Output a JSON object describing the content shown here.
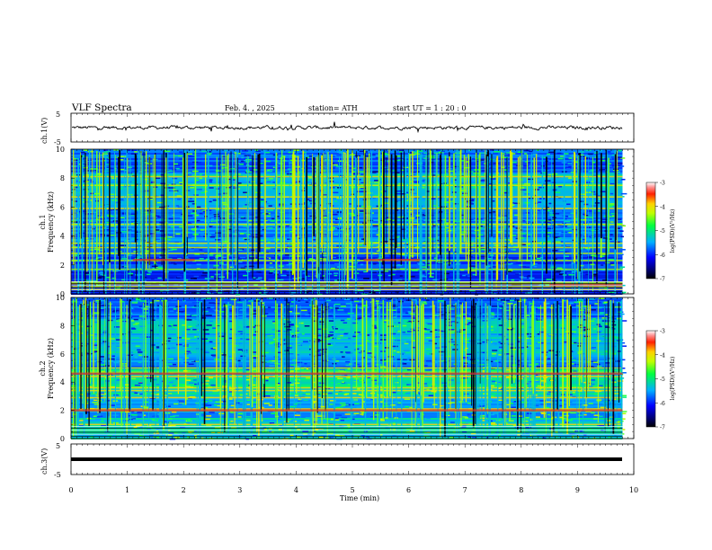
{
  "header": {
    "title": "VLF  Spectra",
    "date": "Feb. 4. , 2025",
    "station": "station= ATH",
    "start": "start  UT  =    1  : 20 : 0"
  },
  "chart_data": [
    {
      "type": "line",
      "name": "ch1-waveform",
      "ylabel": "ch.1(V)",
      "ylim": [
        -5,
        5
      ],
      "yticks": [
        "5",
        "-5"
      ],
      "baseline": 0,
      "xlim": [
        0,
        10
      ]
    },
    {
      "type": "heatmap",
      "name": "ch1-spectrogram",
      "ylabel": "ch.1\nFrequency  (kHz)",
      "ylabel_lines": [
        "ch.1",
        "Frequency  (kHz)"
      ],
      "ylim": [
        0,
        10
      ],
      "yticks": [
        "0",
        "2",
        "4",
        "6",
        "8",
        "10"
      ],
      "xlim": [
        0,
        9.8
      ],
      "colorbar": {
        "label": "log(PSD)(V²/Hz)",
        "range": [
          -7,
          -3
        ],
        "ticks": [
          "-3",
          "-4",
          "-5",
          "-6",
          "-7"
        ]
      },
      "bands_khz": [
        0.3,
        0.5,
        0.7,
        0.8,
        1.7,
        2.3,
        2.8,
        3.2,
        3.5,
        4.8,
        5.9,
        6.7,
        7.5,
        8.1
      ],
      "highlights": [
        {
          "x": [
            1.1,
            2.2
          ],
          "freq_khz": 2.35
        },
        {
          "x": [
            5.2,
            6.2
          ],
          "freq_khz": 2.35
        },
        {
          "x": [
            8.5,
            9.8
          ],
          "freq_khz": 0.6
        }
      ]
    },
    {
      "type": "heatmap",
      "name": "ch2-spectrogram",
      "ylabel_lines": [
        "ch.2",
        "Frequency  (kHz)"
      ],
      "ylim": [
        0,
        10
      ],
      "yticks": [
        "0",
        "2",
        "4",
        "6",
        "8",
        "10"
      ],
      "xlim": [
        0,
        9.8
      ],
      "colorbar": {
        "label": "log(PSD)(V²/Hz)",
        "range": [
          -7,
          -3
        ],
        "ticks": [
          "-3",
          "-4",
          "-5",
          "-6",
          "-7"
        ]
      },
      "bands_khz": [
        1.0,
        2.0,
        2.1,
        2.9,
        3.4,
        3.6,
        4.4,
        4.7,
        5.0
      ],
      "highlights": [
        {
          "x": [
            0,
            9.8
          ],
          "freq_khz": 2.0
        },
        {
          "x": [
            0,
            9.8
          ],
          "freq_khz": 4.6
        }
      ]
    },
    {
      "type": "line",
      "name": "ch3-waveform",
      "ylabel": "ch.3(V)",
      "ylim": [
        -5,
        5
      ],
      "yticks": [
        "5",
        "-5"
      ],
      "baseline": 0,
      "xlim": [
        0,
        9.8
      ]
    }
  ],
  "xaxis": {
    "label": "Time  (min)",
    "ticks": [
      "0",
      "1",
      "2",
      "3",
      "4",
      "5",
      "6",
      "7",
      "8",
      "9",
      "10"
    ]
  }
}
